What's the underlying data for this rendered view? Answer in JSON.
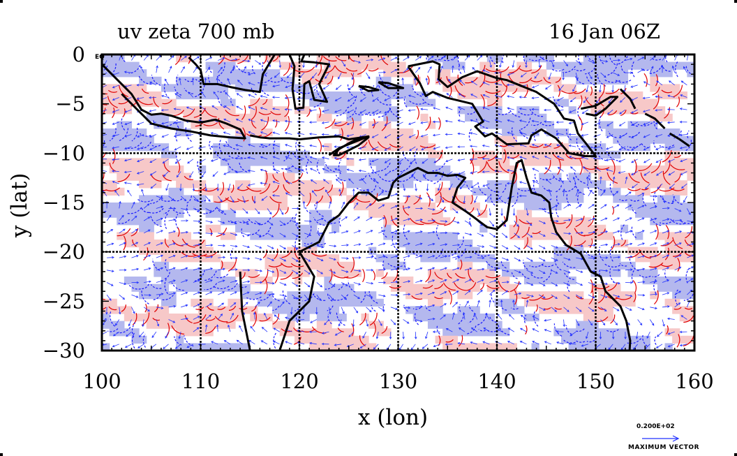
{
  "chart_data": {
    "type": "heatmap",
    "title_left": "uv zeta 700 mb",
    "title_right": "16 Jan 06Z",
    "xlabel": "x (lon)",
    "ylabel": "y (lat)",
    "xlim": [
      100,
      160
    ],
    "ylim": [
      -30,
      0
    ],
    "x_ticks": [
      "100",
      "110",
      "120",
      "130",
      "140",
      "150",
      "160"
    ],
    "y_ticks": [
      "0",
      "−5",
      "−10",
      "−15",
      "−20",
      "−25",
      "−30"
    ],
    "eq_label": "EQ",
    "grid": true,
    "legend": {
      "vector_magnitude": "0.200E+02",
      "label": "MAXIMUM VECTOR",
      "placement": "bottom-right"
    },
    "colors": {
      "positive_fill": "#f7c8c8",
      "positive_contour": "#e00000",
      "negative_fill": "#b4b8ee",
      "negative_contour": "#1a1aff",
      "vector_color": "#2030ff",
      "coastline": "#000000"
    }
  }
}
